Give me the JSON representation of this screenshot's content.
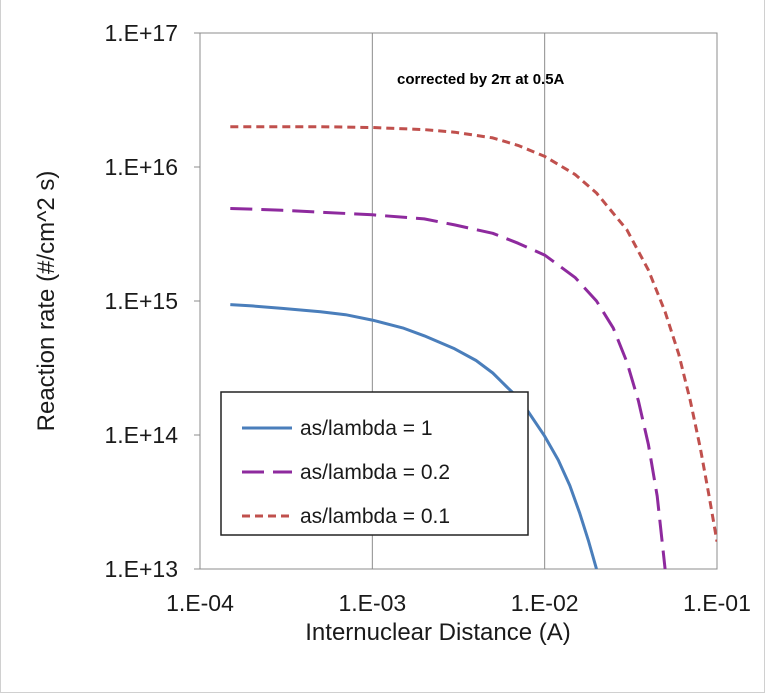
{
  "chart_data": {
    "type": "line",
    "xscale": "log",
    "yscale": "log",
    "xlim": [
      0.0001,
      0.1
    ],
    "ylim": [
      10000000000000.0,
      1e+17
    ],
    "xlabel": "Internuclear Distance (A)",
    "ylabel": "Reaction rate (#/cm^2 s)",
    "annotation": "corrected by 2π at 0.5A",
    "x_ticks": [
      "1.E-04",
      "1.E-03",
      "1.E-02",
      "1.E-01"
    ],
    "y_ticks": [
      "1.E+13",
      "1.E+14",
      "1.E+15",
      "1.E+16",
      "1.E+17"
    ],
    "grid": "vertical only",
    "legend_position": "bottom-left",
    "series": [
      {
        "name": "as/lambda = 1",
        "color": "#4a7ebb",
        "style": "solid",
        "points": [
          [
            0.00015,
            940000000000000.0
          ],
          [
            0.0002,
            920000000000000.0
          ],
          [
            0.0003,
            880000000000000.0
          ],
          [
            0.0005,
            830000000000000.0
          ],
          [
            0.0007,
            790000000000000.0
          ],
          [
            0.001,
            720000000000000.0
          ],
          [
            0.0015,
            630000000000000.0
          ],
          [
            0.002,
            550000000000000.0
          ],
          [
            0.003,
            440000000000000.0
          ],
          [
            0.004,
            360000000000000.0
          ],
          [
            0.005,
            290000000000000.0
          ],
          [
            0.006,
            230000000000000.0
          ],
          [
            0.007,
            190000000000000.0
          ],
          [
            0.008,
            150000000000000.0
          ],
          [
            0.01,
            98000000000000.0
          ],
          [
            0.012,
            65000000000000.0
          ],
          [
            0.014,
            42000000000000.0
          ],
          [
            0.016,
            26000000000000.0
          ],
          [
            0.018,
            16000000000000.0
          ],
          [
            0.02,
            10000000000000.0
          ]
        ]
      },
      {
        "name": "as/lambda = 0.2",
        "color": "#8e2a9e",
        "style": "dashed",
        "points": [
          [
            0.00015,
            4900000000000000.0
          ],
          [
            0.0002,
            4850000000000000.0
          ],
          [
            0.0003,
            4750000000000000.0
          ],
          [
            0.0005,
            4600000000000000.0
          ],
          [
            0.001,
            4400000000000000.0
          ],
          [
            0.002,
            4100000000000000.0
          ],
          [
            0.003,
            3700000000000000.0
          ],
          [
            0.005,
            3200000000000000.0
          ],
          [
            0.007,
            2700000000000000.0
          ],
          [
            0.01,
            2200000000000000.0
          ],
          [
            0.015,
            1500000000000000.0
          ],
          [
            0.02,
            1000000000000000.0
          ],
          [
            0.025,
            630000000000000.0
          ],
          [
            0.03,
            350000000000000.0
          ],
          [
            0.035,
            180000000000000.0
          ],
          [
            0.04,
            85000000000000.0
          ],
          [
            0.045,
            35000000000000.0
          ],
          [
            0.05,
            10000000000000.0
          ]
        ]
      },
      {
        "name": "as/lambda = 0.1",
        "color": "#c0504d",
        "style": "dotted",
        "points": [
          [
            0.00015,
            2e+16
          ],
          [
            0.0002,
            2e+16
          ],
          [
            0.0005,
            2e+16
          ],
          [
            0.001,
            1.97e+16
          ],
          [
            0.002,
            1.9e+16
          ],
          [
            0.003,
            1.82e+16
          ],
          [
            0.005,
            1.65e+16
          ],
          [
            0.007,
            1.45e+16
          ],
          [
            0.01,
            1.2e+16
          ],
          [
            0.015,
            8800000000000000.0
          ],
          [
            0.02,
            6400000000000000.0
          ],
          [
            0.03,
            3400000000000000.0
          ],
          [
            0.04,
            1700000000000000.0
          ],
          [
            0.05,
            830000000000000.0
          ],
          [
            0.06,
            400000000000000.0
          ],
          [
            0.07,
            180000000000000.0
          ],
          [
            0.08,
            80000000000000.0
          ],
          [
            0.09,
            35000000000000.0
          ],
          [
            0.1,
            16000000000000.0
          ]
        ]
      }
    ]
  }
}
